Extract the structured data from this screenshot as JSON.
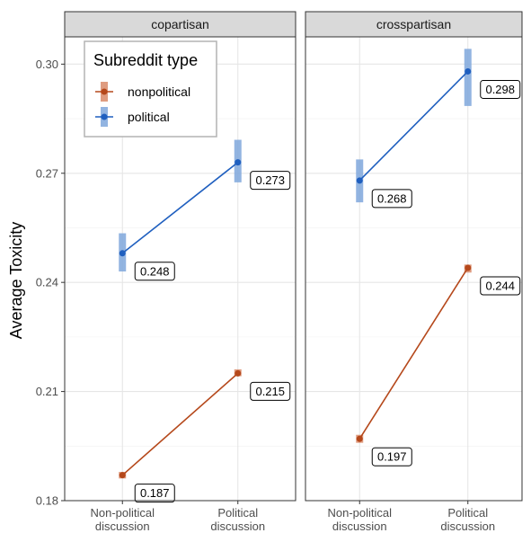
{
  "chart_data": {
    "type": "line",
    "ylabel": "Average Toxicity",
    "ylim": [
      0.18,
      0.3075
    ],
    "yticks": [
      "0.18",
      "0.21",
      "0.24",
      "0.27",
      "0.30"
    ],
    "categories": [
      "Non-political\ndiscussion",
      "Political\ndiscussion"
    ],
    "panels": [
      "copartisan",
      "crosspartisan"
    ],
    "legend": {
      "title": "Subreddit type",
      "position": "top-left"
    },
    "grid": true,
    "series": [
      {
        "name": "nonpolitical",
        "color": "#b5481b",
        "band_color": "#d98b6a",
        "values": {
          "copartisan": [
            0.187,
            0.215
          ],
          "crosspartisan": [
            0.197,
            0.244
          ]
        },
        "ci": {
          "copartisan": [
            [
              0.1861,
              0.1879
            ],
            [
              0.2142,
              0.2161
            ]
          ],
          "crosspartisan": [
            [
              0.1959,
              0.1981
            ],
            [
              0.2427,
              0.2449
            ]
          ]
        },
        "labels": {
          "copartisan": [
            "0.187",
            "0.215"
          ],
          "crosspartisan": [
            "0.197",
            "0.244"
          ]
        }
      },
      {
        "name": "political",
        "color": "#1f5fbf",
        "band_color": "#7fa7dc",
        "values": {
          "copartisan": [
            0.248,
            0.273
          ],
          "crosspartisan": [
            0.268,
            0.298
          ]
        },
        "ci": {
          "copartisan": [
            [
              0.243,
              0.2535
            ],
            [
              0.2675,
              0.2792
            ]
          ],
          "crosspartisan": [
            [
              0.262,
              0.2738
            ],
            [
              0.2885,
              0.3042
            ]
          ]
        },
        "labels": {
          "copartisan": [
            "0.248",
            "0.273"
          ],
          "crosspartisan": [
            "0.268",
            "0.298"
          ]
        }
      }
    ]
  }
}
